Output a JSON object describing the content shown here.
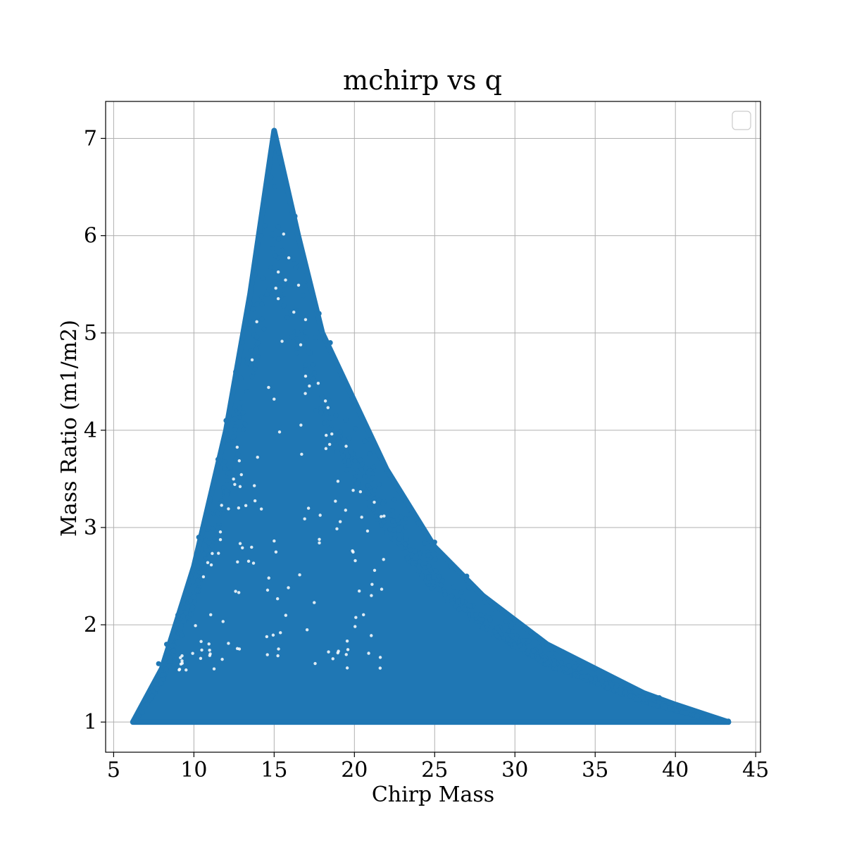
{
  "chart_data": {
    "type": "scatter",
    "title": "mchirp vs q",
    "xlabel": "Chirp Mass",
    "ylabel": "Mass Ratio (m1/m2)",
    "xlim": [
      4.5,
      45.3
    ],
    "ylim": [
      0.69,
      7.38
    ],
    "xticks": [
      5,
      10,
      15,
      20,
      25,
      30,
      35,
      40,
      45
    ],
    "yticks": [
      1,
      2,
      3,
      4,
      5,
      6,
      7
    ],
    "grid": true,
    "legend": {
      "placement": "top-right",
      "entries": []
    },
    "series": [
      {
        "color": "#1f77b4",
        "marker": "circle",
        "region_outline": {
          "description": "point cloud fills the region between q = 1 and an upper envelope",
          "upper_envelope": [
            [
              6.2,
              1.0
            ],
            [
              8.0,
              1.55
            ],
            [
              10.0,
              2.6
            ],
            [
              12.0,
              4.0
            ],
            [
              13.5,
              5.4
            ],
            [
              15.0,
              7.08
            ],
            [
              16.5,
              6.0
            ],
            [
              18.0,
              5.0
            ],
            [
              20.0,
              4.3
            ],
            [
              22.0,
              3.6
            ],
            [
              25.0,
              2.8
            ],
            [
              28.0,
              2.3
            ],
            [
              30.0,
              2.05
            ],
            [
              32.0,
              1.8
            ],
            [
              35.0,
              1.55
            ],
            [
              38.0,
              1.3
            ],
            [
              40.0,
              1.18
            ],
            [
              43.3,
              1.0
            ]
          ]
        },
        "sample_points": [
          [
            15.0,
            7.08
          ],
          [
            15.2,
            6.95
          ],
          [
            15.3,
            6.85
          ],
          [
            15.5,
            6.7
          ],
          [
            14.8,
            6.6
          ],
          [
            15.8,
            6.5
          ],
          [
            14.5,
            6.3
          ],
          [
            16.3,
            6.2
          ],
          [
            14.2,
            6.0
          ],
          [
            16.8,
            5.8
          ],
          [
            13.8,
            5.6
          ],
          [
            17.2,
            5.5
          ],
          [
            13.5,
            5.3
          ],
          [
            17.8,
            5.2
          ],
          [
            13.0,
            4.9
          ],
          [
            18.5,
            4.9
          ],
          [
            12.6,
            4.6
          ],
          [
            19.3,
            4.5
          ],
          [
            20.0,
            4.25
          ],
          [
            12.0,
            4.1
          ],
          [
            21.0,
            3.9
          ],
          [
            11.5,
            3.7
          ],
          [
            22.0,
            3.6
          ],
          [
            23.0,
            3.3
          ],
          [
            11.0,
            3.3
          ],
          [
            24.0,
            3.05
          ],
          [
            25.0,
            2.85
          ],
          [
            10.3,
            2.9
          ],
          [
            26.0,
            2.6
          ],
          [
            27.0,
            2.5
          ],
          [
            9.8,
            2.5
          ],
          [
            28.0,
            2.3
          ],
          [
            9.0,
            2.1
          ],
          [
            29.5,
            2.1
          ],
          [
            30.0,
            2.05
          ],
          [
            31.0,
            1.92
          ],
          [
            8.3,
            1.8
          ],
          [
            32.0,
            1.8
          ],
          [
            33.0,
            1.72
          ],
          [
            7.8,
            1.6
          ],
          [
            34.0,
            1.62
          ],
          [
            35.0,
            1.55
          ],
          [
            36.0,
            1.45
          ],
          [
            7.2,
            1.3
          ],
          [
            37.0,
            1.38
          ],
          [
            38.0,
            1.3
          ],
          [
            39.0,
            1.25
          ],
          [
            40.0,
            1.18
          ],
          [
            41.0,
            1.12
          ],
          [
            6.8,
            1.1
          ],
          [
            42.0,
            1.06
          ],
          [
            43.3,
            1.01
          ],
          [
            6.2,
            1.0
          ],
          [
            10.0,
            1.0
          ],
          [
            20.0,
            1.0
          ],
          [
            30.0,
            1.0
          ],
          [
            40.0,
            1.0
          ]
        ]
      }
    ]
  }
}
